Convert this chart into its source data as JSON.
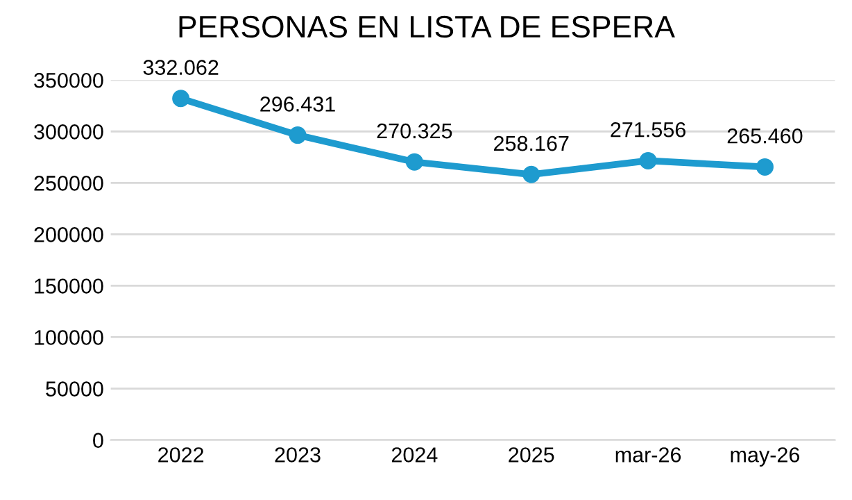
{
  "chart_data": {
    "type": "line",
    "title": "PERSONAS EN LISTA DE ESPERA",
    "categories": [
      "2022",
      "2023",
      "2024",
      "2025",
      "mar-26",
      "may-26"
    ],
    "series": [
      {
        "color": "#1e9bcf",
        "values": [
          332062,
          296431,
          270325,
          258167,
          271556,
          265460
        ],
        "value_labels": [
          "332.062",
          "296.431",
          "270.325",
          "258.167",
          "271.556",
          "265.460"
        ]
      }
    ],
    "ylim": [
      0,
      350000
    ],
    "yticks": [
      0,
      50000,
      100000,
      150000,
      200000,
      250000,
      300000,
      350000
    ],
    "grid": "y",
    "marker": "circle",
    "line_style": "solid"
  }
}
